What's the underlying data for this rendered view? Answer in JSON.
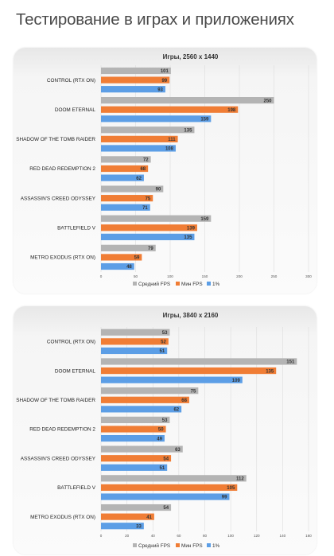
{
  "page_title": "Тестирование в играх и приложениях",
  "colors": {
    "avg": "#b4b4b4",
    "min": "#f07d35",
    "p1": "#5c9ee6"
  },
  "chart_data": [
    {
      "type": "bar",
      "orientation": "horizontal",
      "title": "Игры, 2560 x 1440",
      "categories": [
        "CONTROL (RTX ON)",
        "DOOM ETERNAL",
        "SHADOW OF THE TOMB RAIDER",
        "RED DEAD REDEMPTION 2",
        "ASSASSIN'S CREED ODYSSEY",
        "BATTLEFIELD V",
        "METRO EXODUS (RTX ON)"
      ],
      "series": [
        {
          "name": "Средний FPS",
          "color": "#b4b4b4",
          "values": [
            101,
            250,
            135,
            72,
            90,
            159,
            79
          ]
        },
        {
          "name": "Мин FPS",
          "color": "#f07d35",
          "values": [
            99,
            198,
            111,
            68,
            75,
            139,
            59
          ]
        },
        {
          "name": "1%",
          "color": "#5c9ee6",
          "values": [
            93,
            159,
            108,
            62,
            71,
            135,
            48
          ]
        }
      ],
      "xlim": [
        0,
        300
      ],
      "xticks": [
        0,
        50,
        100,
        150,
        200,
        250,
        300
      ],
      "grid": true,
      "legend": "bottom"
    },
    {
      "type": "bar",
      "orientation": "horizontal",
      "title": "Игры, 3840 x 2160",
      "categories": [
        "CONTROL (RTX ON)",
        "DOOM ETERNAL",
        "SHADOW OF THE TOMB RAIDER",
        "RED DEAD REDEMPTION 2",
        "ASSASSIN'S CREED ODYSSEY",
        "BATTLEFIELD V",
        "METRO EXODUS (RTX ON)"
      ],
      "series": [
        {
          "name": "Средний FPS",
          "color": "#b4b4b4",
          "values": [
            53,
            151,
            75,
            53,
            63,
            112,
            54
          ]
        },
        {
          "name": "Мин FPS",
          "color": "#f07d35",
          "values": [
            52,
            135,
            68,
            50,
            54,
            105,
            41
          ]
        },
        {
          "name": "1%",
          "color": "#5c9ee6",
          "values": [
            51,
            109,
            62,
            49,
            51,
            99,
            33
          ]
        }
      ],
      "xlim": [
        0,
        160
      ],
      "xticks": [
        0,
        20,
        40,
        60,
        80,
        100,
        120,
        140,
        160
      ],
      "grid": true,
      "legend": "bottom"
    }
  ]
}
